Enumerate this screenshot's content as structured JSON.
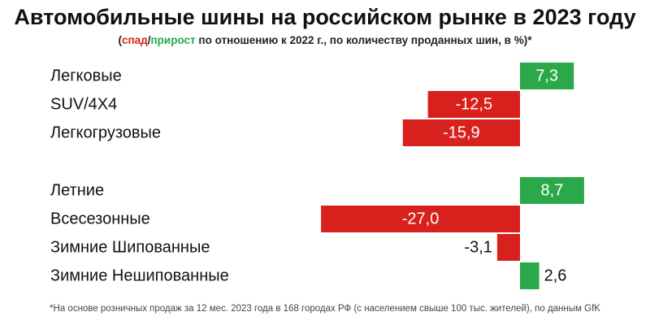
{
  "header": {
    "title": "Автомобильные шины на российском рынке в 2023 году",
    "subtitle_open": "(",
    "subtitle_neg": "спад",
    "subtitle_slash": "/",
    "subtitle_pos": "прирост",
    "subtitle_rest": " по отношению к 2022 г., по количеству проданных шин, в %)*"
  },
  "footnote": "*На основе розничных продаж за 12 мес. 2023 года в 168 городах РФ (с населением свыше 100 тыс. жителей), по данным GfK",
  "colors": {
    "negative": "#d8211c",
    "positive": "#2aa84a"
  },
  "chart_data": {
    "type": "bar",
    "orientation": "horizontal",
    "groups": [
      {
        "categories": [
          "Легковые",
          "SUV/4X4",
          "Легкогрузовые"
        ],
        "values": [
          7.3,
          -12.5,
          -15.9
        ],
        "labels": [
          "7,3",
          "-12,5",
          "-15,9"
        ]
      },
      {
        "categories": [
          "Летние",
          "Всесезонные",
          "Зимние Шипованные",
          "Зимние Нешипованные"
        ],
        "values": [
          8.7,
          -27.0,
          -3.1,
          2.6
        ],
        "labels": [
          "8,7",
          "-27,0",
          "-3,1",
          "2,6"
        ]
      }
    ],
    "title": "Автомобильные шины на российском рынке в 2023 году",
    "xlabel": "",
    "ylabel": "",
    "grid": false,
    "legend": "none"
  }
}
